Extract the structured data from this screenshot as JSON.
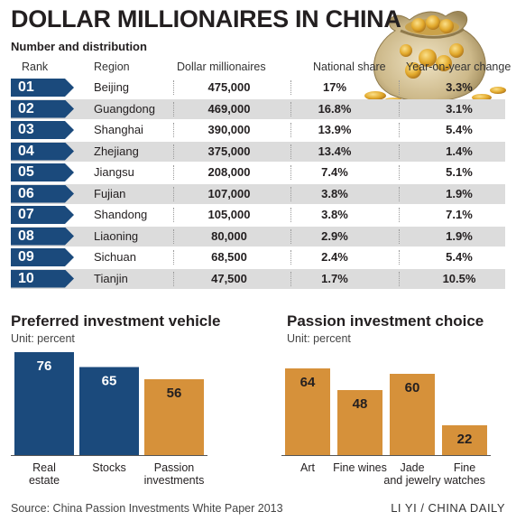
{
  "header": {
    "title": "DOLLAR MILLIONAIRES IN CHINA",
    "subtitle": "Number and distribution"
  },
  "table": {
    "columns": [
      "Rank",
      "Region",
      "Dollar millionaires",
      "National share",
      "Year-on-year change"
    ],
    "rows": [
      {
        "rank": "01",
        "region": "Beijing",
        "millionaires": "475,000",
        "share": "17%",
        "change": "3.3%"
      },
      {
        "rank": "02",
        "region": "Guangdong",
        "millionaires": "469,000",
        "share": "16.8%",
        "change": "3.1%"
      },
      {
        "rank": "03",
        "region": "Shanghai",
        "millionaires": "390,000",
        "share": "13.9%",
        "change": "5.4%"
      },
      {
        "rank": "04",
        "region": "Zhejiang",
        "millionaires": "375,000",
        "share": "13.4%",
        "change": "1.4%"
      },
      {
        "rank": "05",
        "region": "Jiangsu",
        "millionaires": "208,000",
        "share": "7.4%",
        "change": "5.1%"
      },
      {
        "rank": "06",
        "region": "Fujian",
        "millionaires": "107,000",
        "share": "3.8%",
        "change": "1.9%"
      },
      {
        "rank": "07",
        "region": "Shandong",
        "millionaires": "105,000",
        "share": "3.8%",
        "change": "7.1%"
      },
      {
        "rank": "08",
        "region": "Liaoning",
        "millionaires": "80,000",
        "share": "2.9%",
        "change": "1.9%"
      },
      {
        "rank": "09",
        "region": "Sichuan",
        "millionaires": "68,500",
        "share": "2.4%",
        "change": "5.4%"
      },
      {
        "rank": "10",
        "region": "Tianjin",
        "millionaires": "47,500",
        "share": "1.7%",
        "change": "10.5%"
      }
    ]
  },
  "colors": {
    "rank_arrow": "#1b4a7c",
    "bar_blue": "#1b4a7c",
    "bar_orange": "#d6913a",
    "row_shade": "#dcdcdc"
  },
  "chart_data": [
    {
      "type": "bar",
      "title": "Preferred investment vehicle",
      "unit": "Unit: percent",
      "categories": [
        "Real estate",
        "Stocks",
        "Passion investments"
      ],
      "values": [
        76,
        65,
        56
      ],
      "bar_colors": [
        "#1b4a7c",
        "#1b4a7c",
        "#d6913a"
      ],
      "ylim": [
        0,
        76
      ]
    },
    {
      "type": "bar",
      "title": "Passion investment choice",
      "unit": "Unit: percent",
      "categories": [
        "Art",
        "Fine wines",
        "Jade and jewelry",
        "Fine watches"
      ],
      "values": [
        64,
        48,
        60,
        22
      ],
      "bar_colors": [
        "#d6913a",
        "#d6913a",
        "#d6913a",
        "#d6913a"
      ],
      "ylim": [
        0,
        76
      ]
    }
  ],
  "footer": {
    "source": "Source: China Passion Investments White Paper 2013",
    "credit": "LI YI / CHINA DAILY"
  },
  "icons": {
    "decoration": "money-bag-icon"
  }
}
